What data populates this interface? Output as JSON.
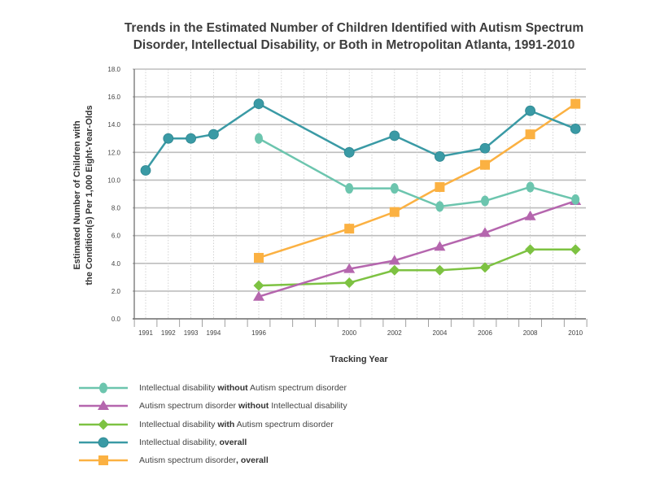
{
  "chart_data": {
    "type": "line",
    "title": "Trends in the Estimated Number of Children Identified with Autism Spectrum Disorder, Intellectual Disability, or Both in Metropolitan Atlanta, 1991-2010",
    "title_lines": [
      "Trends in the Estimated Number of Children Identified with Autism Spectrum",
      "Disorder, Intellectual Disability, or Both in Metropolitan Atlanta, 1991-2010"
    ],
    "xlabel": "Tracking Year",
    "ylabel_lines": [
      "Estimated Number of Children with",
      "the Condition(s) Per 1,000 Eight-Year-Olds"
    ],
    "ylim": [
      0,
      18
    ],
    "yticks": [
      "0.0",
      "2.0",
      "4.0",
      "6.0",
      "8.0",
      "10.0",
      "12.0",
      "14.0",
      "16.0",
      "18.0"
    ],
    "xticks": [
      1991,
      1992,
      1993,
      1994,
      1996,
      2000,
      2002,
      2004,
      2006,
      2008,
      2010
    ],
    "grid": true,
    "legend_placement": "bottom",
    "series": [
      {
        "name": "Intellectual disability without Autism spectrum disorder",
        "legend_parts": [
          "Intellectual disability ",
          "without",
          " Autism spectrum disorder"
        ],
        "color": "#6cc5ae",
        "marker": "ellipse",
        "x": [
          1996,
          2000,
          2002,
          2004,
          2006,
          2008,
          2010
        ],
        "values": [
          13.0,
          9.4,
          9.4,
          8.1,
          8.5,
          9.5,
          8.6
        ]
      },
      {
        "name": "Autism spectrum disorder without Intellectual disability",
        "legend_parts": [
          "Autism spectrum disorder ",
          "without",
          " Intellectual disability"
        ],
        "color": "#b566ae",
        "marker": "triangle",
        "x": [
          1996,
          2000,
          2002,
          2004,
          2006,
          2008,
          2010
        ],
        "values": [
          1.6,
          3.6,
          4.2,
          5.2,
          6.2,
          7.4,
          8.5
        ]
      },
      {
        "name": "Intellectual disability with Autism spectrum disorder",
        "legend_parts": [
          "Intellectual disability ",
          "with",
          " Autism spectrum disorder"
        ],
        "color": "#7dc242",
        "marker": "diamond",
        "x": [
          1996,
          2000,
          2002,
          2004,
          2006,
          2008,
          2010
        ],
        "values": [
          2.4,
          2.6,
          3.5,
          3.5,
          3.7,
          5.0,
          5.0
        ]
      },
      {
        "name": "Intellectual disability, overall",
        "legend_parts": [
          "Intellectual disability, ",
          "overall",
          ""
        ],
        "color": "#3a9aa5",
        "marker": "circle",
        "x": [
          1991,
          1992,
          1993,
          1994,
          1996,
          2000,
          2002,
          2004,
          2006,
          2008,
          2010
        ],
        "values": [
          10.7,
          13.0,
          13.0,
          13.3,
          15.5,
          12.0,
          13.2,
          11.7,
          12.3,
          15.0,
          13.7
        ]
      },
      {
        "name": "Autism spectrum disorder, overall",
        "legend_parts": [
          "Autism spectrum disorder",
          ", overall",
          ""
        ],
        "color": "#fbb142",
        "marker": "square",
        "x": [
          1996,
          2000,
          2002,
          2004,
          2006,
          2008,
          2010
        ],
        "values": [
          4.4,
          6.5,
          7.7,
          9.5,
          11.1,
          13.3,
          15.5
        ]
      }
    ]
  }
}
